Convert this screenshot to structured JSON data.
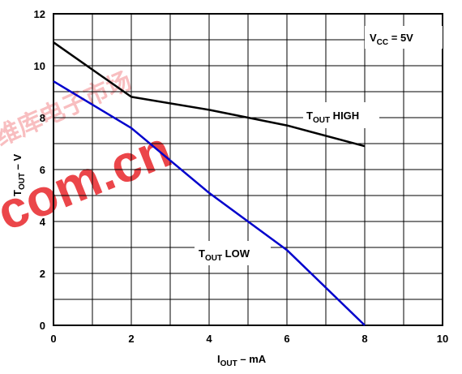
{
  "chart_data": {
    "type": "line",
    "xlabel_main": "I",
    "xlabel_sub": "OUT",
    "xlabel_rest": " – mA",
    "ylabel_main": "T",
    "ylabel_sub": "OUT",
    "ylabel_rest": " – V",
    "xlim": [
      0,
      10
    ],
    "ylim": [
      0,
      12
    ],
    "xticks": [
      0,
      2,
      4,
      6,
      8,
      10
    ],
    "yticks": [
      0,
      2,
      4,
      6,
      8,
      10,
      12
    ],
    "grid": true,
    "series": [
      {
        "name": "T_OUT HIGH",
        "label_main": "T",
        "label_sub": "OUT",
        "label_rest": " HIGH",
        "color": "#000000",
        "x": [
          0,
          2,
          4,
          6,
          8
        ],
        "y": [
          10.9,
          8.8,
          8.3,
          7.7,
          6.9
        ]
      },
      {
        "name": "T_OUT LOW",
        "label_main": "T",
        "label_sub": "OUT",
        "label_rest": " LOW",
        "color": "#0000cc",
        "x": [
          0,
          2,
          4,
          6,
          8
        ],
        "y": [
          9.4,
          7.6,
          5.1,
          2.9,
          0
        ]
      }
    ],
    "annotation": {
      "main": "V",
      "sub": "CC",
      "rest": " = 5V"
    }
  },
  "watermark": {
    "text": "com.cn",
    "script_text": "维库电子市场",
    "color": "#e8262b"
  }
}
